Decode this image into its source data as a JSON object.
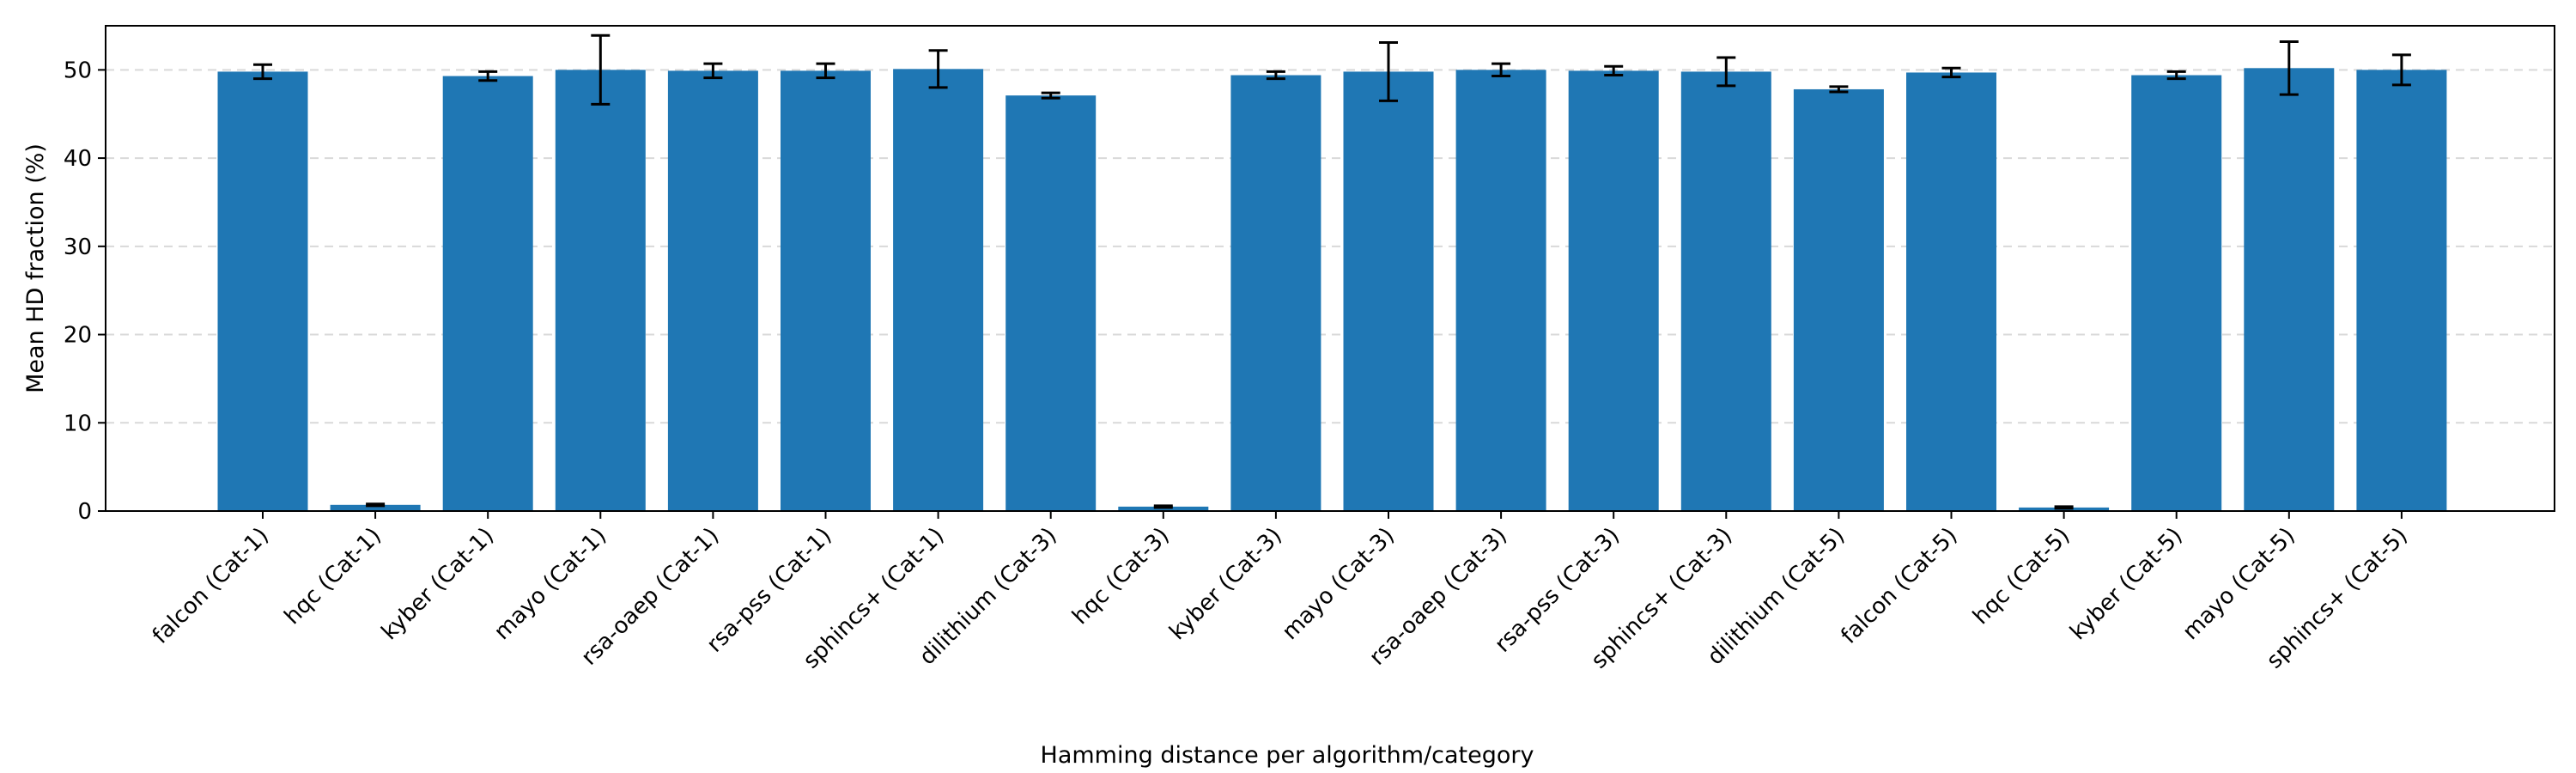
{
  "chart_data": {
    "type": "bar",
    "title": "",
    "xlabel": "Hamming distance per algorithm/category",
    "ylabel": "Mean HD fraction (%)",
    "ylim": [
      0,
      55
    ],
    "yticks": [
      0,
      10,
      20,
      30,
      40,
      50
    ],
    "grid": "y-dashed",
    "bar_color": "#1f77b4",
    "errorbar_color": "#000000",
    "categories": [
      "falcon (Cat-1)",
      "hqc (Cat-1)",
      "kyber (Cat-1)",
      "mayo (Cat-1)",
      "rsa-oaep (Cat-1)",
      "rsa-pss (Cat-1)",
      "sphincs+ (Cat-1)",
      "dilithium (Cat-3)",
      "hqc (Cat-3)",
      "kyber (Cat-3)",
      "mayo (Cat-3)",
      "rsa-oaep (Cat-3)",
      "rsa-pss (Cat-3)",
      "sphincs+ (Cat-3)",
      "dilithium (Cat-5)",
      "falcon (Cat-5)",
      "hqc (Cat-5)",
      "kyber (Cat-5)",
      "mayo (Cat-5)",
      "sphincs+ (Cat-5)"
    ],
    "values": [
      49.8,
      0.7,
      49.3,
      50.0,
      49.9,
      49.9,
      50.1,
      47.1,
      0.5,
      49.4,
      49.8,
      50.0,
      49.9,
      49.8,
      47.8,
      49.7,
      0.4,
      49.4,
      50.2,
      50.0
    ],
    "errors": [
      0.8,
      0.1,
      0.5,
      3.9,
      0.8,
      0.8,
      2.1,
      0.3,
      0.1,
      0.4,
      3.3,
      0.7,
      0.5,
      1.6,
      0.3,
      0.5,
      0.1,
      0.4,
      3.0,
      1.7
    ]
  }
}
